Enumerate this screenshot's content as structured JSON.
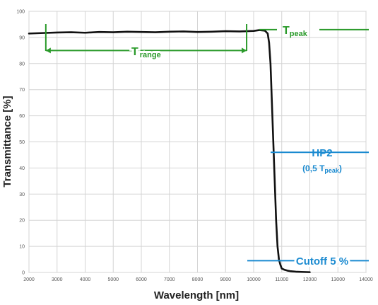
{
  "chart_data": {
    "type": "line",
    "title": "",
    "xlabel": "Wavelength [nm]",
    "ylabel": "Transmittance [%]",
    "xlim": [
      2000,
      14000
    ],
    "ylim": [
      0,
      100
    ],
    "xticks": [
      2000,
      3000,
      4000,
      5000,
      6000,
      7000,
      8000,
      9000,
      10000,
      11000,
      12000,
      13000,
      14000
    ],
    "yticks": [
      0,
      10,
      20,
      30,
      40,
      50,
      60,
      70,
      80,
      90,
      100
    ],
    "grid": true,
    "series": [
      {
        "name": "",
        "color": "#111111",
        "x": [
          2000,
          2500,
          3000,
          3500,
          4000,
          4500,
          5000,
          5500,
          6000,
          6500,
          7000,
          7500,
          8000,
          8500,
          9000,
          9500,
          10000,
          10200,
          10400,
          10500,
          10550,
          10600,
          10650,
          10700,
          10750,
          10800,
          10850,
          10900,
          10950,
          11000,
          11100,
          11200,
          11300,
          11400,
          11500,
          11700,
          12000
        ],
        "y": [
          91.5,
          91.7,
          91.9,
          92.0,
          91.8,
          92.1,
          92.0,
          92.2,
          92.1,
          92.0,
          92.2,
          92.3,
          92.1,
          92.2,
          92.4,
          92.3,
          92.5,
          92.8,
          92.6,
          91.5,
          88,
          80,
          65,
          50,
          35,
          20,
          10,
          5,
          3,
          1.5,
          1,
          0.7,
          0.5,
          0.4,
          0.3,
          0.2,
          0.1
        ]
      }
    ],
    "annotations": {
      "t_peak": {
        "main": "T",
        "sub": "peak",
        "y": 93,
        "x_start": 10000,
        "color": "#2a9a2a"
      },
      "t_range": {
        "main": "T",
        "sub": "range",
        "x_start": 2600,
        "x_end": 9750,
        "y": 85,
        "color": "#2a9a2a"
      },
      "hp2": {
        "label": "HP2",
        "note_prefix": "(0,5 T",
        "note_sub": "peak",
        "note_suffix": ")",
        "y": 46,
        "color": "#1a8ad0"
      },
      "cutoff": {
        "label": "Cutoff 5 %",
        "y": 4.5,
        "color": "#1a8ad0"
      }
    }
  }
}
